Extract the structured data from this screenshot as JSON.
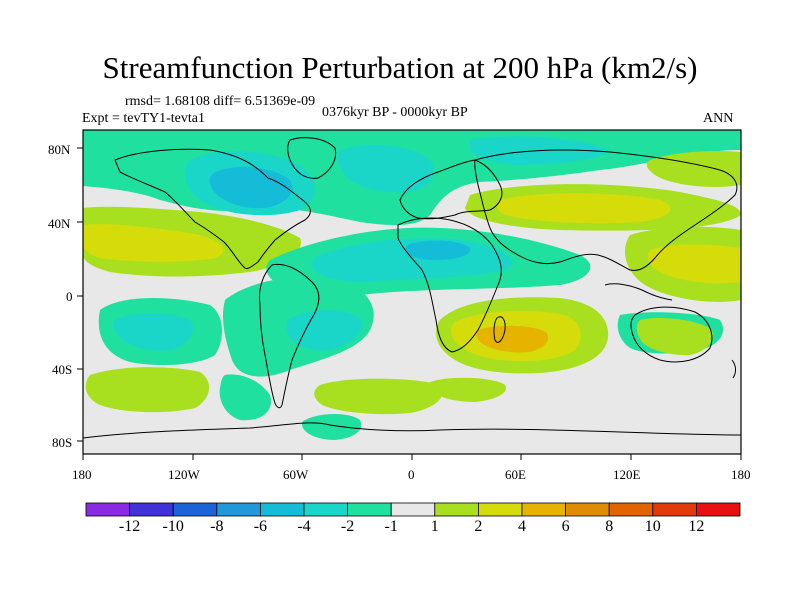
{
  "title": "Streamfunction Perturbation at 200 hPa (km2/s)",
  "stats": "rmsd= 1.68108 diff= 6.51369e-09",
  "experiment": "Expt = tevTY1-tevta1",
  "period": "0376kyr BP - 0000kyr BP",
  "season": "ANN",
  "y_ticks": [
    "80N",
    "40N",
    "0",
    "40S",
    "80S"
  ],
  "x_ticks": [
    "180",
    "120W",
    "60W",
    "0",
    "60E",
    "120E",
    "180"
  ],
  "colorbar": {
    "colors": [
      "#8a2be2",
      "#3f32d6",
      "#1c63d8",
      "#1f98dc",
      "#14bcd8",
      "#1ad6c8",
      "#20e0a0",
      "#e8e8e8",
      "#a8e020",
      "#d6dc0a",
      "#e6b400",
      "#e08c00",
      "#e26400",
      "#e03c0a",
      "#e81010"
    ],
    "labels": [
      "-12",
      "-10",
      "-8",
      "-6",
      "-4",
      "-2",
      "-1",
      "1",
      "2",
      "4",
      "6",
      "8",
      "10",
      "12"
    ]
  },
  "palette": {
    "background": "#e8e8e8",
    "pos2": "#a8e020",
    "pos4": "#d6dc0a",
    "pos6": "#e6b400",
    "neg1": "#20e0a0",
    "neg2": "#1ad6c8",
    "neg4": "#14bcd8",
    "neg6": "#1f98dc"
  }
}
